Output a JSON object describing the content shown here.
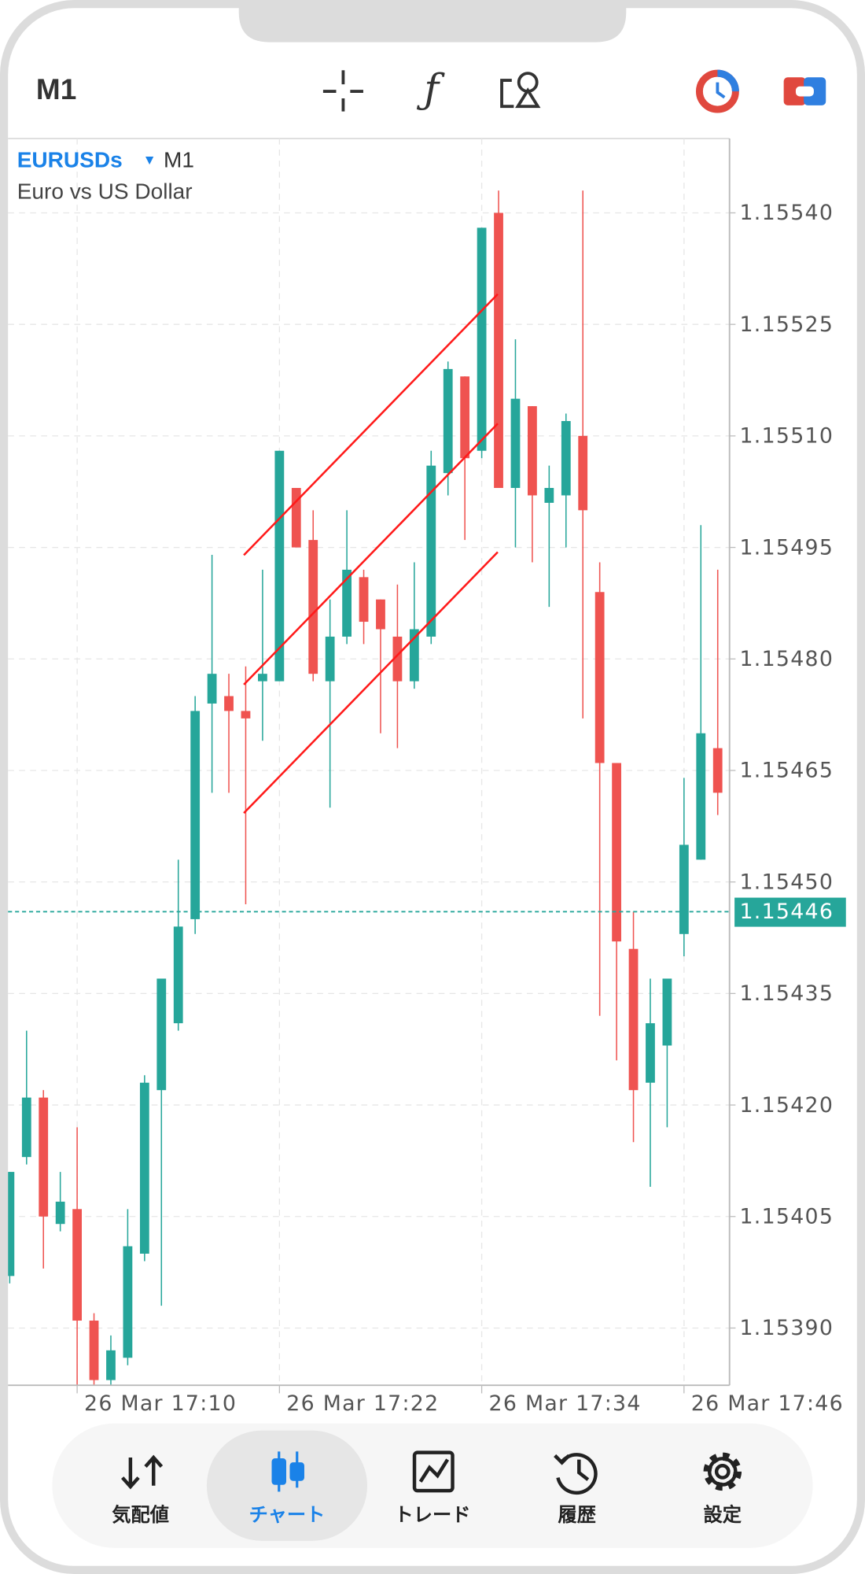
{
  "toolbar": {
    "timeframe": "M1"
  },
  "chart_data": {
    "type": "candlestick",
    "symbol": "EURUSDs",
    "timeframe": "M1",
    "description": "Euro vs US Dollar",
    "up_color": "#26a69a",
    "down_color": "#ef5350",
    "open": [
      1.15397,
      1.15413,
      1.15421,
      1.15404,
      1.15406,
      1.15391,
      1.15383,
      1.15386,
      1.154,
      1.15422,
      1.15431,
      1.15445,
      1.15474,
      1.15475,
      1.15473,
      1.15477,
      1.15477,
      1.15503,
      1.15496,
      1.15477,
      1.15483,
      1.15491,
      1.15488,
      1.15483,
      1.15477,
      1.15483,
      1.15505,
      1.15518,
      1.15508,
      1.1554,
      1.15503,
      1.15514,
      1.15501,
      1.15502,
      1.1551,
      1.15489,
      1.15466,
      1.15441,
      1.15423,
      1.15428,
      1.15443,
      1.15453,
      1.15468
    ],
    "high": [
      1.15411,
      1.1543,
      1.15422,
      1.15411,
      1.15417,
      1.15392,
      1.15389,
      1.15406,
      1.15424,
      1.15437,
      1.15453,
      1.15475,
      1.15494,
      1.15478,
      1.15479,
      1.15492,
      1.15508,
      1.15503,
      1.155,
      1.15488,
      1.155,
      1.15492,
      1.15488,
      1.1549,
      1.15493,
      1.15508,
      1.1552,
      1.15518,
      1.15538,
      1.15543,
      1.15523,
      1.15514,
      1.15506,
      1.15513,
      1.15543,
      1.15493,
      1.15466,
      1.15446,
      1.15437,
      1.15437,
      1.15464,
      1.15498,
      1.15492
    ],
    "low": [
      1.15396,
      1.15412,
      1.15398,
      1.15403,
      1.15382,
      1.15382,
      1.15382,
      1.15385,
      1.15399,
      1.15393,
      1.1543,
      1.15443,
      1.15462,
      1.15462,
      1.15447,
      1.15469,
      1.15477,
      1.15495,
      1.15477,
      1.1546,
      1.15482,
      1.15482,
      1.1547,
      1.15468,
      1.15476,
      1.15482,
      1.15502,
      1.15496,
      1.15507,
      1.15503,
      1.15495,
      1.15493,
      1.15487,
      1.15495,
      1.15472,
      1.15432,
      1.15426,
      1.15415,
      1.15409,
      1.15417,
      1.1544,
      1.15453,
      1.15459
    ],
    "close": [
      1.15411,
      1.15421,
      1.15405,
      1.15407,
      1.15391,
      1.15383,
      1.15387,
      1.15401,
      1.15423,
      1.15437,
      1.15444,
      1.15473,
      1.15478,
      1.15473,
      1.15472,
      1.15478,
      1.15508,
      1.15495,
      1.15478,
      1.15483,
      1.15492,
      1.15485,
      1.15484,
      1.15477,
      1.15484,
      1.15506,
      1.15519,
      1.15507,
      1.15538,
      1.15503,
      1.15515,
      1.15502,
      1.15503,
      1.15512,
      1.155,
      1.15466,
      1.15442,
      1.15422,
      1.15431,
      1.15437,
      1.15455,
      1.1547,
      1.15462
    ],
    "ylim": [
      1.153823,
      1.1555
    ],
    "yticks": [
      {
        "value": 1.1554,
        "label": "1.15540"
      },
      1.15525,
      {
        "value": 1.1551,
        "label": "1.15510"
      },
      1.15495,
      {
        "value": 1.1548,
        "label": "1.15480"
      },
      1.15465,
      {
        "value": 1.1545,
        "label": "1.15450"
      },
      1.15435,
      {
        "value": 1.1542,
        "label": "1.15420"
      },
      1.15405,
      {
        "value": 1.1539,
        "label": "1.15390"
      }
    ],
    "xlim": [
      -0.1,
      42.7
    ],
    "xticks": [
      {
        "value": 4,
        "label": "26 Mar 17:10"
      },
      {
        "value": 16,
        "label": "26 Mar 17:22"
      },
      {
        "value": 28,
        "label": "26 Mar 17:34"
      },
      {
        "value": 40,
        "label": "26 Mar 17:46"
      }
    ],
    "grid": true,
    "current_price": 1.15446,
    "current_price_color": "#26a69a"
  },
  "nav": {
    "items": [
      "気配値",
      "チャート",
      "トレード",
      "履歴",
      "設定"
    ],
    "active": 1,
    "active_color": "#1a82e8"
  }
}
